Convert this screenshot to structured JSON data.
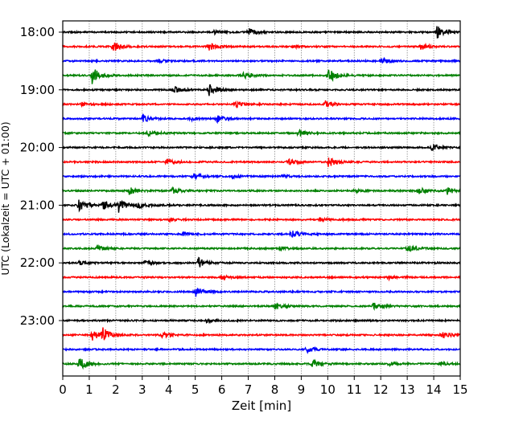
{
  "chart_data": {
    "type": "line",
    "title": "",
    "xlabel": "Zeit  [min]",
    "ylabel": "UTC (Lokalzeit = UTC + 01:00)",
    "xlim": [
      0,
      15
    ],
    "x_ticks": [
      "0",
      "1",
      "2",
      "3",
      "4",
      "5",
      "6",
      "7",
      "8",
      "9",
      "10",
      "11",
      "12",
      "13",
      "14",
      "15"
    ],
    "y_tick_labels": [
      "18:00",
      "19:00",
      "20:00",
      "21:00",
      "22:00",
      "23:00"
    ],
    "grid": "vertical dotted at each minute",
    "colors": [
      "#000000",
      "#ff0000",
      "#0000ff",
      "#008000"
    ],
    "rows_per_hour": 4,
    "minutes_per_row": 15,
    "series": [
      {
        "name": "18:00",
        "events": [
          [
            5.7,
            1
          ],
          [
            7.0,
            2
          ],
          [
            14.1,
            4
          ]
        ]
      },
      {
        "name": "18:15",
        "events": [
          [
            1.9,
            3
          ],
          [
            5.5,
            3
          ],
          [
            8.7,
            1
          ],
          [
            13.5,
            2
          ]
        ]
      },
      {
        "name": "18:30",
        "events": [
          [
            3.6,
            1
          ],
          [
            12.0,
            2
          ]
        ]
      },
      {
        "name": "18:45",
        "events": [
          [
            1.1,
            5
          ],
          [
            6.8,
            2
          ],
          [
            10.0,
            5
          ]
        ]
      },
      {
        "name": "19:00",
        "events": [
          [
            4.2,
            2
          ],
          [
            5.5,
            4
          ]
        ]
      },
      {
        "name": "19:15",
        "events": [
          [
            0.7,
            1
          ],
          [
            6.5,
            2
          ],
          [
            9.9,
            2
          ]
        ]
      },
      {
        "name": "19:30",
        "events": [
          [
            3.0,
            2
          ],
          [
            4.8,
            1
          ],
          [
            5.8,
            2
          ]
        ]
      },
      {
        "name": "19:45",
        "events": [
          [
            3.2,
            2
          ],
          [
            8.9,
            2
          ]
        ]
      },
      {
        "name": "20:00",
        "events": [
          [
            13.9,
            2
          ]
        ]
      },
      {
        "name": "20:15",
        "events": [
          [
            3.9,
            2
          ],
          [
            8.5,
            2
          ],
          [
            10.0,
            3
          ]
        ]
      },
      {
        "name": "20:30",
        "events": [
          [
            4.9,
            2
          ],
          [
            6.4,
            1
          ],
          [
            8.2,
            1
          ]
        ]
      },
      {
        "name": "20:45",
        "events": [
          [
            2.5,
            2
          ],
          [
            4.1,
            2
          ],
          [
            11.0,
            1
          ],
          [
            13.4,
            2
          ],
          [
            14.5,
            2
          ]
        ]
      },
      {
        "name": "21:00",
        "events": [
          [
            0.6,
            3
          ],
          [
            1.5,
            3
          ],
          [
            2.1,
            4
          ],
          [
            2.8,
            2
          ]
        ]
      },
      {
        "name": "21:15",
        "events": [
          [
            4.0,
            1
          ],
          [
            9.7,
            1
          ]
        ]
      },
      {
        "name": "21:30",
        "events": [
          [
            4.5,
            1
          ],
          [
            8.6,
            3
          ]
        ]
      },
      {
        "name": "21:45",
        "events": [
          [
            1.3,
            2
          ],
          [
            8.2,
            1
          ],
          [
            13.0,
            2
          ]
        ]
      },
      {
        "name": "22:00",
        "events": [
          [
            0.6,
            1
          ],
          [
            3.1,
            1
          ],
          [
            5.1,
            3
          ]
        ]
      },
      {
        "name": "22:15",
        "events": [
          [
            6.0,
            1
          ],
          [
            12.3,
            1
          ]
        ]
      },
      {
        "name": "22:30",
        "events": [
          [
            5.0,
            3
          ]
        ]
      },
      {
        "name": "22:45",
        "events": [
          [
            8.0,
            2
          ],
          [
            11.7,
            2
          ]
        ]
      },
      {
        "name": "23:00",
        "events": [
          [
            5.4,
            1
          ]
        ]
      },
      {
        "name": "23:15",
        "events": [
          [
            1.1,
            3
          ],
          [
            1.5,
            4
          ],
          [
            3.7,
            2
          ],
          [
            14.3,
            2
          ]
        ]
      },
      {
        "name": "23:30",
        "events": [
          [
            9.2,
            2
          ]
        ]
      },
      {
        "name": "23:45",
        "events": [
          [
            0.6,
            4
          ],
          [
            9.4,
            3
          ],
          [
            12.3,
            1
          ],
          [
            14.2,
            1
          ]
        ]
      }
    ]
  }
}
